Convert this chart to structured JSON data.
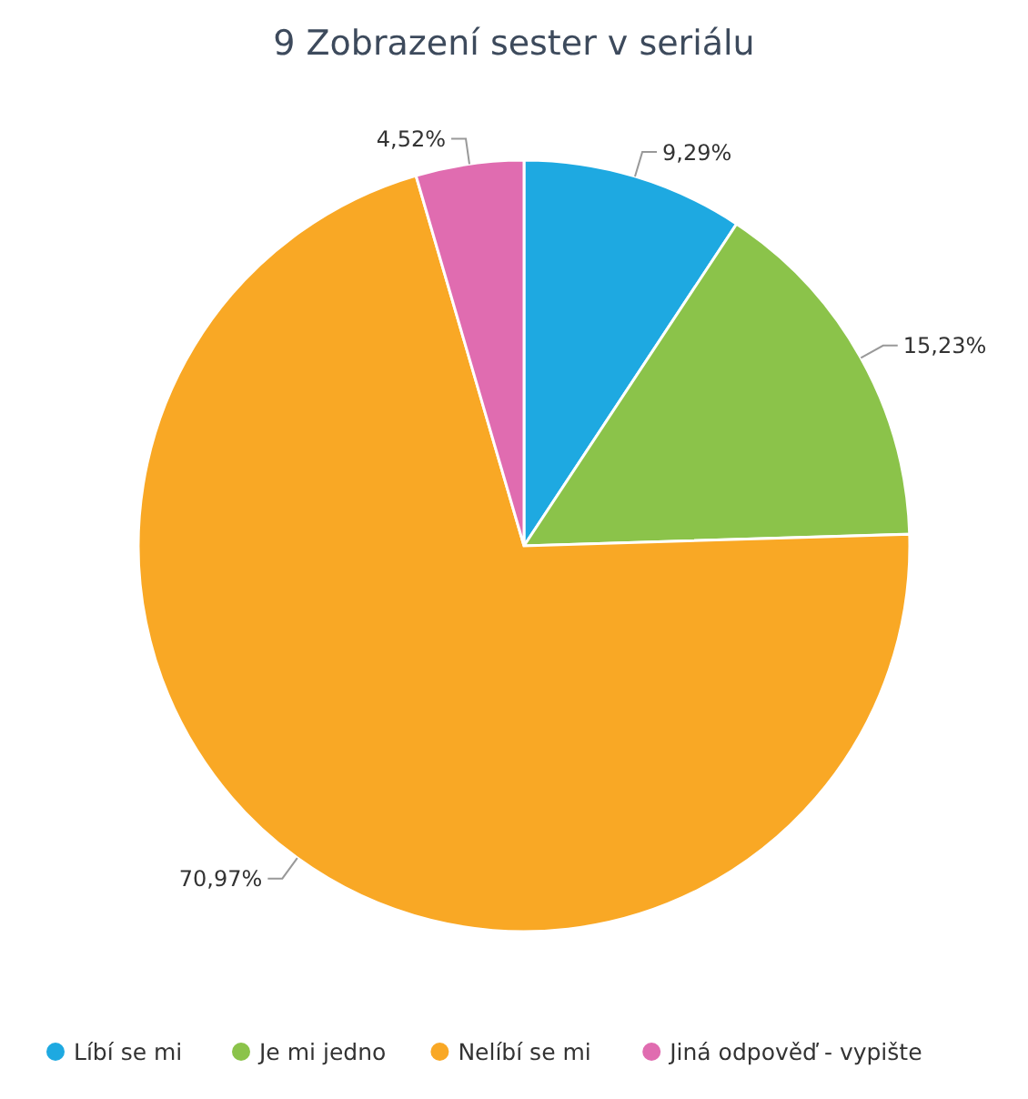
{
  "chart_data": {
    "type": "pie",
    "title": "9 Zobrazení sester v seriálu",
    "categories": [
      "Líbí se mi",
      "Je mi jedno",
      "Nelíbí se mi",
      "Jiná odpověď - vypište"
    ],
    "values": [
      9.29,
      15.23,
      70.97,
      4.52
    ],
    "value_labels": [
      "9,29%",
      "15,23%",
      "70,97%",
      "4,52%"
    ],
    "colors": [
      "#1ea9e1",
      "#8bc34a",
      "#f9a825",
      "#e06cb0"
    ],
    "legend": "bottom"
  }
}
